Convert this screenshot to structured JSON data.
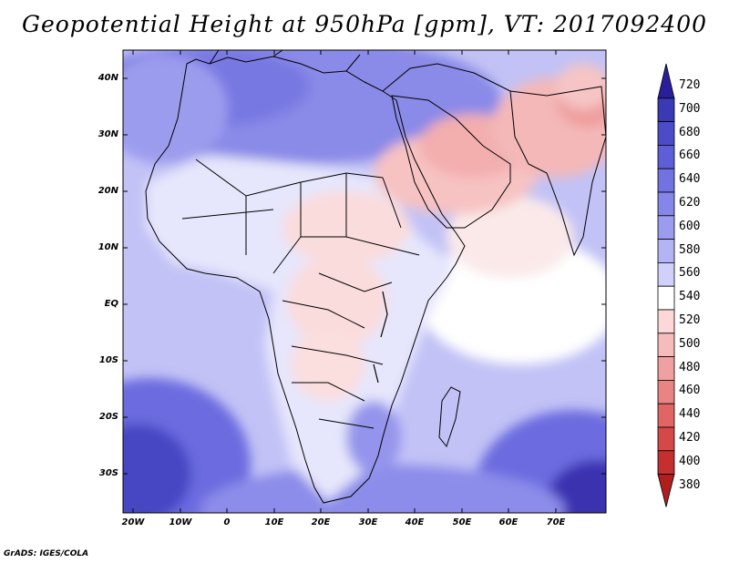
{
  "title": "Geopotential Height at 950hPa [gpm], VT: 2017092400",
  "map": {
    "variable": "Geopotential Height",
    "level": "950hPa",
    "units": "gpm",
    "valid_time": "2017092400",
    "lat_labels": [
      "40N",
      "30N",
      "20N",
      "10N",
      "EQ",
      "10S",
      "20S",
      "30S"
    ],
    "lon_labels": [
      "20W",
      "10W",
      "0",
      "10E",
      "20E",
      "30E",
      "40E",
      "50E",
      "60E",
      "70E"
    ]
  },
  "colorbar": {
    "levels": [
      "720",
      "700",
      "680",
      "660",
      "640",
      "620",
      "600",
      "580",
      "560",
      "540",
      "520",
      "500",
      "480",
      "460",
      "440",
      "420",
      "400",
      "380"
    ],
    "colors": [
      "#2a1f9a",
      "#3a3ab4",
      "#4c4cc8",
      "#5e5ed6",
      "#7272e0",
      "#8686e8",
      "#9c9cee",
      "#b4b4f4",
      "#d0d0fa",
      "#ffffff",
      "#fcd8d8",
      "#f6bcbc",
      "#f0a0a0",
      "#e88484",
      "#e06666",
      "#d44848",
      "#c43030",
      "#b01e1e"
    ]
  },
  "credit": "GrADS: IGES/COLA"
}
